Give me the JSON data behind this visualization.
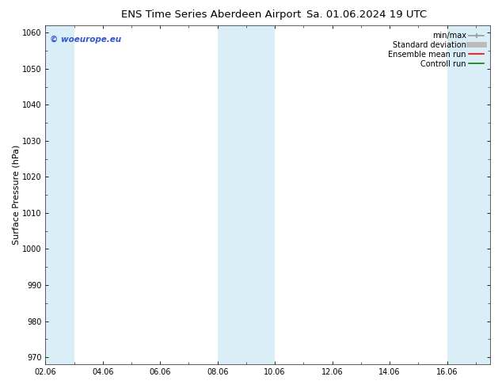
{
  "title": "ENS Time Series Aberdeen Airport",
  "title2": "Sa. 01.06.2024 19 UTC",
  "ylabel": "Surface Pressure (hPa)",
  "ylim": [
    968,
    1062
  ],
  "yticks": [
    970,
    980,
    990,
    1000,
    1010,
    1020,
    1030,
    1040,
    1050,
    1060
  ],
  "xlim": [
    0,
    15.5
  ],
  "xtick_labels": [
    "02.06",
    "04.06",
    "06.06",
    "08.06",
    "10.06",
    "12.06",
    "14.06",
    "16.06"
  ],
  "xtick_positions": [
    0,
    2,
    4,
    6,
    8,
    10,
    12,
    14
  ],
  "shaded_bands": [
    {
      "start": 0.0,
      "end": 1.0
    },
    {
      "start": 6.0,
      "end": 7.0
    },
    {
      "start": 7.0,
      "end": 8.0
    },
    {
      "start": 14.0,
      "end": 15.5
    }
  ],
  "band_color": "#daeef8",
  "background_color": "#ffffff",
  "watermark": "© woeurope.eu",
  "watermark_color": "#3355cc",
  "legend_items": [
    "min/max",
    "Standard deviation",
    "Ensemble mean run",
    "Controll run"
  ],
  "legend_line_colors": [
    "#999999",
    "#bbbbbb",
    "#ff0000",
    "#008800"
  ],
  "title_fontsize": 9.5,
  "axis_label_fontsize": 8,
  "tick_fontsize": 7,
  "legend_fontsize": 7
}
